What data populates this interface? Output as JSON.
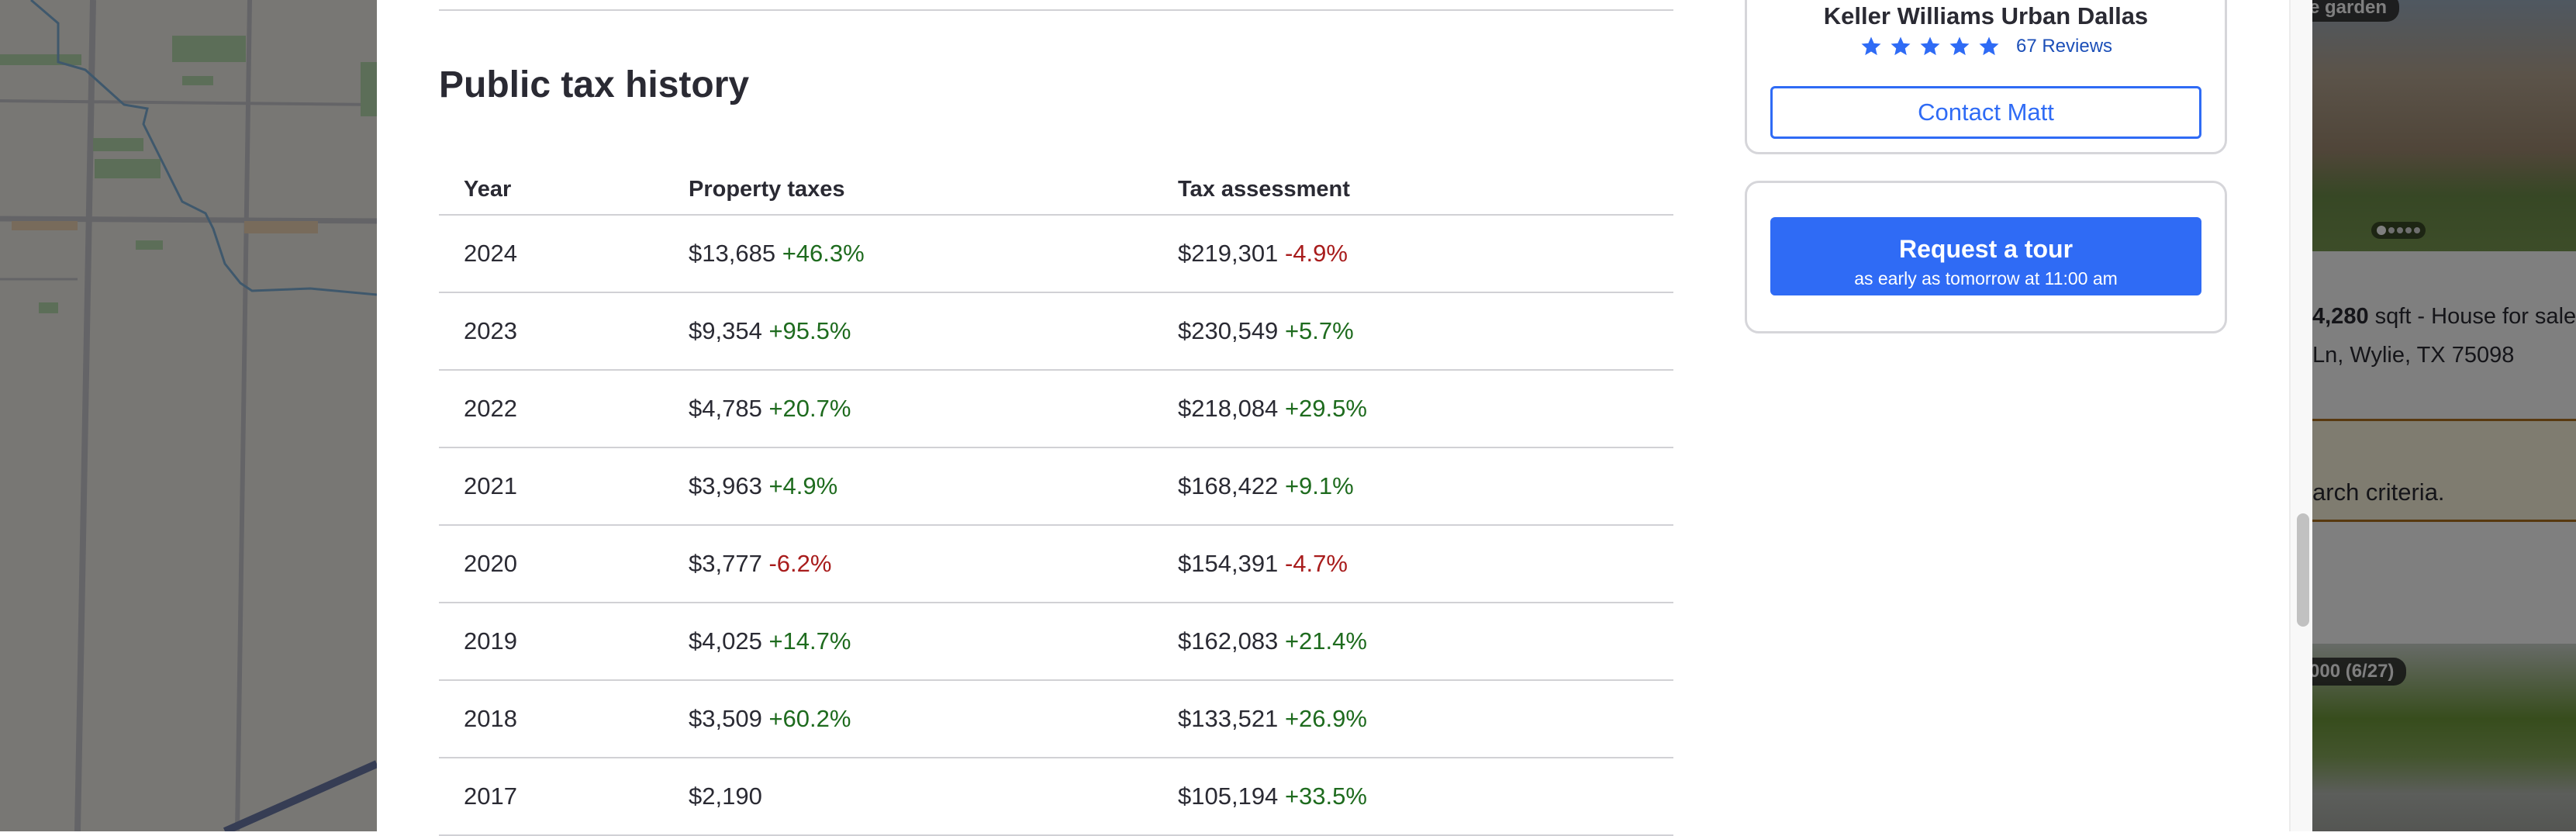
{
  "section": {
    "title": "Public tax history"
  },
  "table": {
    "headers": [
      "Year",
      "Property taxes",
      "Tax assessment"
    ],
    "rows": [
      {
        "year": "2024",
        "tax": "$13,685",
        "tax_change": "+46.3%",
        "tax_trend": "up",
        "assessment": "$219,301",
        "assessment_change": "-4.9%",
        "assessment_trend": "down"
      },
      {
        "year": "2023",
        "tax": "$9,354",
        "tax_change": "+95.5%",
        "tax_trend": "up",
        "assessment": "$230,549",
        "assessment_change": "+5.7%",
        "assessment_trend": "up"
      },
      {
        "year": "2022",
        "tax": "$4,785",
        "tax_change": "+20.7%",
        "tax_trend": "up",
        "assessment": "$218,084",
        "assessment_change": "+29.5%",
        "assessment_trend": "up"
      },
      {
        "year": "2021",
        "tax": "$3,963",
        "tax_change": "+4.9%",
        "tax_trend": "up",
        "assessment": "$168,422",
        "assessment_change": "+9.1%",
        "assessment_trend": "up"
      },
      {
        "year": "2020",
        "tax": "$3,777",
        "tax_change": "-6.2%",
        "tax_trend": "down",
        "assessment": "$154,391",
        "assessment_change": "-4.7%",
        "assessment_trend": "down"
      },
      {
        "year": "2019",
        "tax": "$4,025",
        "tax_change": "+14.7%",
        "tax_trend": "up",
        "assessment": "$162,083",
        "assessment_change": "+21.4%",
        "assessment_trend": "up"
      },
      {
        "year": "2018",
        "tax": "$3,509",
        "tax_change": "+60.2%",
        "tax_trend": "up",
        "assessment": "$133,521",
        "assessment_change": "+26.9%",
        "assessment_trend": "up"
      },
      {
        "year": "2017",
        "tax": "$2,190",
        "tax_change": "",
        "tax_trend": "",
        "assessment": "$105,194",
        "assessment_change": "+33.5%",
        "assessment_trend": "up"
      }
    ]
  },
  "agent": {
    "brokerage": "Keller Williams Urban Dallas",
    "rating": 5,
    "reviews": "67 Reviews",
    "contact_label": "Contact Matt"
  },
  "tour": {
    "label": "Request a tour",
    "sublabel": "as early as tomorrow at 11:00 am"
  },
  "listings": {
    "card1": {
      "badge": "e garden",
      "sqft": "4,280",
      "sqft_suffix": " sqft - House for sale",
      "address": "Ln, Wylie, TX 75098"
    },
    "banner": "arch criteria.",
    "card2": {
      "badge": "000 (6/27)"
    }
  },
  "colors": {
    "accent": "#2f6bf5",
    "positive": "#1e6b1e",
    "negative": "#a81c1c"
  }
}
